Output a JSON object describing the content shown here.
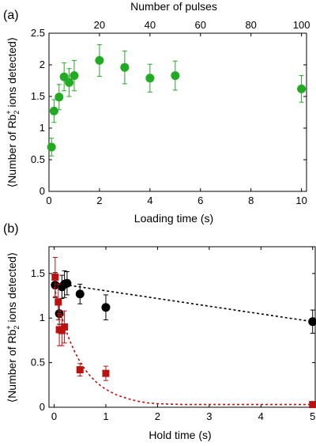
{
  "chart_data": [
    {
      "panel_label": "(a)",
      "type": "scatter",
      "xlabel": "Loading time (s)",
      "ylabel": "⟨Number of Rb2+ ions detected⟩",
      "ylabel_parts": {
        "pre": "⟨Number of Rb",
        "sub": "2",
        "sup": "+",
        "post": " ions detected⟩"
      },
      "x2label": "Number of pulses",
      "xlim": [
        0,
        10.2
      ],
      "ylim": [
        0,
        2.5
      ],
      "x2lim": [
        0,
        102
      ],
      "xticks": [
        "0",
        "2",
        "4",
        "6",
        "8",
        "10"
      ],
      "xtick_values": [
        0,
        2,
        4,
        6,
        8,
        10
      ],
      "yticks": [
        "0",
        "0.5",
        "1",
        "1.5",
        "2",
        "2.5"
      ],
      "ytick_values": [
        0,
        0.5,
        1,
        1.5,
        2,
        2.5
      ],
      "x2ticks": [
        "20",
        "40",
        "60",
        "80",
        "100"
      ],
      "x2tick_values": [
        20,
        40,
        60,
        80,
        100
      ],
      "color": "#22aa22",
      "series": [
        {
          "marker": "circle",
          "x": [
            0.1,
            0.2,
            0.4,
            0.6,
            0.8,
            1.0,
            2.0,
            3.0,
            4.0,
            5.0,
            10.0
          ],
          "y": [
            0.7,
            1.27,
            1.49,
            1.81,
            1.72,
            1.83,
            2.07,
            1.96,
            1.79,
            1.83,
            1.62
          ],
          "err": [
            0.14,
            0.18,
            0.2,
            0.22,
            0.22,
            0.24,
            0.25,
            0.26,
            0.22,
            0.23,
            0.21
          ]
        }
      ]
    },
    {
      "panel_label": "(b)",
      "type": "scatter",
      "xlabel": "Hold time (s)",
      "ylabel": "⟨Number of Rb2+ ions detected⟩",
      "ylabel_parts": {
        "pre": "⟨Number of Rb",
        "sub": "2",
        "sup": "+",
        "post": " ions detected⟩"
      },
      "xlim": [
        -0.1,
        5.05
      ],
      "ylim": [
        0,
        1.8
      ],
      "xticks": [
        "0",
        "1",
        "2",
        "3",
        "4",
        "5"
      ],
      "xtick_values": [
        0,
        1,
        2,
        3,
        4,
        5
      ],
      "yticks": [
        "0",
        "0.5",
        "1",
        "1.5"
      ],
      "ytick_values": [
        0,
        0.5,
        1,
        1.5
      ],
      "series": [
        {
          "marker": "circle",
          "color": "#000000",
          "x": [
            0.02,
            0.1,
            0.15,
            0.2,
            0.25,
            0.5,
            1.0,
            5.0
          ],
          "y": [
            1.37,
            1.05,
            1.35,
            1.38,
            1.39,
            1.27,
            1.12,
            0.96
          ],
          "err": [
            0.14,
            0.12,
            0.13,
            0.15,
            0.13,
            0.11,
            0.14,
            0.13
          ],
          "fit": {
            "style": "dashed",
            "x": [
              0.02,
              5.0
            ],
            "y": [
              1.39,
              0.96
            ]
          }
        },
        {
          "marker": "square",
          "color": "#bb1111",
          "x": [
            0.02,
            0.08,
            0.1,
            0.15,
            0.2,
            0.5,
            1.0,
            5.0
          ],
          "y": [
            1.46,
            1.18,
            0.87,
            0.86,
            0.9,
            0.42,
            0.38,
            0.03
          ],
          "err": [
            0.22,
            0.2,
            0.18,
            0.17,
            0.18,
            0.07,
            0.08,
            0.02
          ],
          "fit": {
            "style": "dashed",
            "x": [
              0.0,
              0.1,
              0.2,
              0.3,
              0.4,
              0.5,
              0.6,
              0.7,
              0.8,
              0.9,
              1.0,
              1.2,
              1.4,
              1.6,
              1.8,
              2.0,
              2.5,
              3.0,
              3.5,
              4.0,
              4.5,
              5.0
            ],
            "y": [
              1.35,
              1.11,
              0.91,
              0.75,
              0.62,
              0.51,
              0.42,
              0.35,
              0.29,
              0.24,
              0.2,
              0.14,
              0.1,
              0.07,
              0.05,
              0.04,
              0.03,
              0.03,
              0.03,
              0.03,
              0.03,
              0.03
            ]
          }
        }
      ]
    }
  ]
}
